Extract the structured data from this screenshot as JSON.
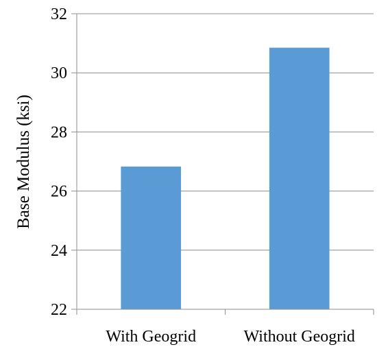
{
  "chart_data": {
    "type": "bar",
    "categories": [
      "With Geogrid",
      "Without Geogrid"
    ],
    "values": [
      26.83,
      30.85
    ],
    "title": "",
    "xlabel": "",
    "ylabel": "Base Modulus (ksi)",
    "ylim": [
      22,
      32
    ],
    "yticks": [
      22,
      24,
      26,
      28,
      30,
      32
    ],
    "grid": true,
    "legend": "none",
    "colors": {
      "bar": "#5B9BD5",
      "grid": "#8C8C8C",
      "axis": "#8C8C8C"
    }
  }
}
